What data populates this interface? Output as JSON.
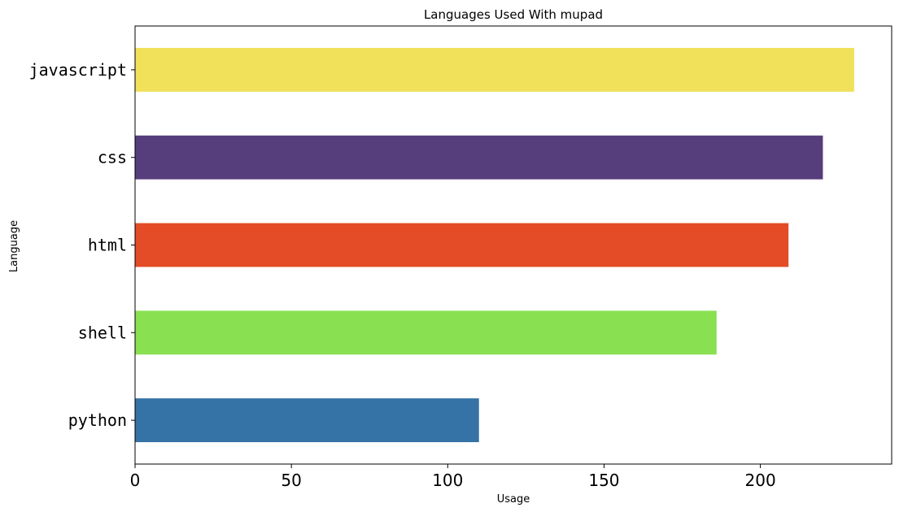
{
  "chart_data": {
    "type": "bar",
    "orientation": "horizontal",
    "title": "Languages Used With mupad",
    "xlabel": "Usage",
    "ylabel": "Language",
    "categories": [
      "javascript",
      "css",
      "html",
      "shell",
      "python"
    ],
    "values": [
      230,
      220,
      209,
      186,
      110
    ],
    "colors": [
      "#f0e05a",
      "#563d7c",
      "#e34c26",
      "#89e051",
      "#3572a5"
    ],
    "xlim": [
      0,
      242
    ],
    "xticks": [
      0,
      50,
      100,
      150,
      200
    ],
    "grid": false,
    "legend": "none"
  }
}
